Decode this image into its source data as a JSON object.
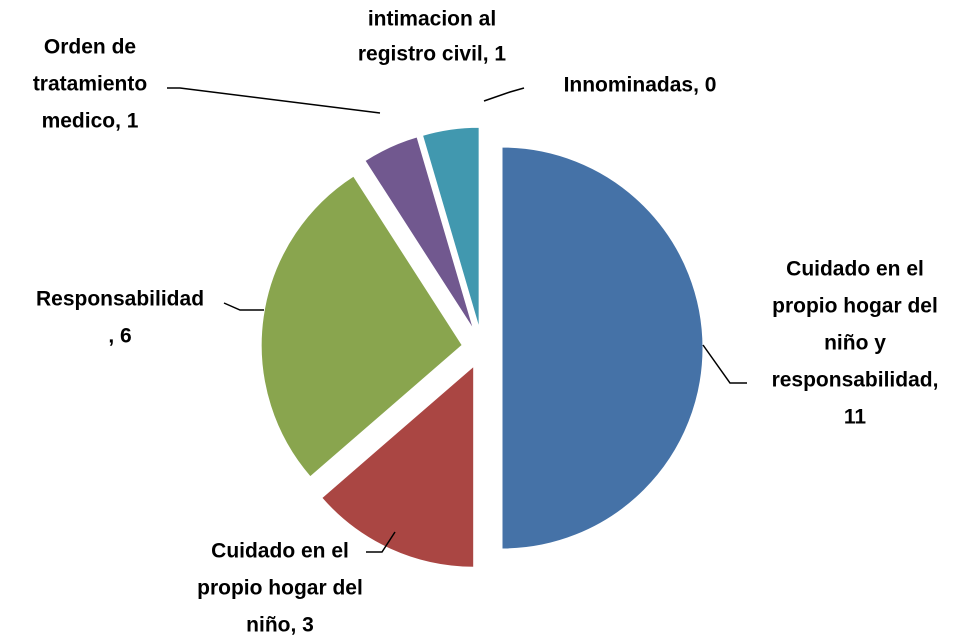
{
  "chart_data": {
    "type": "pie",
    "labels": [
      [
        "Cuidado en el",
        "propio hogar del",
        "niño y",
        "responsabilidad,",
        "11"
      ],
      [
        "Cuidado en el",
        "propio hogar del",
        "niño, 3"
      ],
      [
        "Responsabilidad",
        ", 6"
      ],
      [
        "Orden de",
        "tratamiento",
        "medico, 1"
      ],
      [
        "intimacion al",
        "registro civil, 1"
      ],
      [
        "Innominadas, 0"
      ]
    ],
    "values": [
      11,
      3,
      6,
      1,
      1,
      0
    ],
    "colors": [
      "#4572a7",
      "#aa4643",
      "#89a54e",
      "#71588f",
      "#4198af",
      "#db843d"
    ]
  }
}
